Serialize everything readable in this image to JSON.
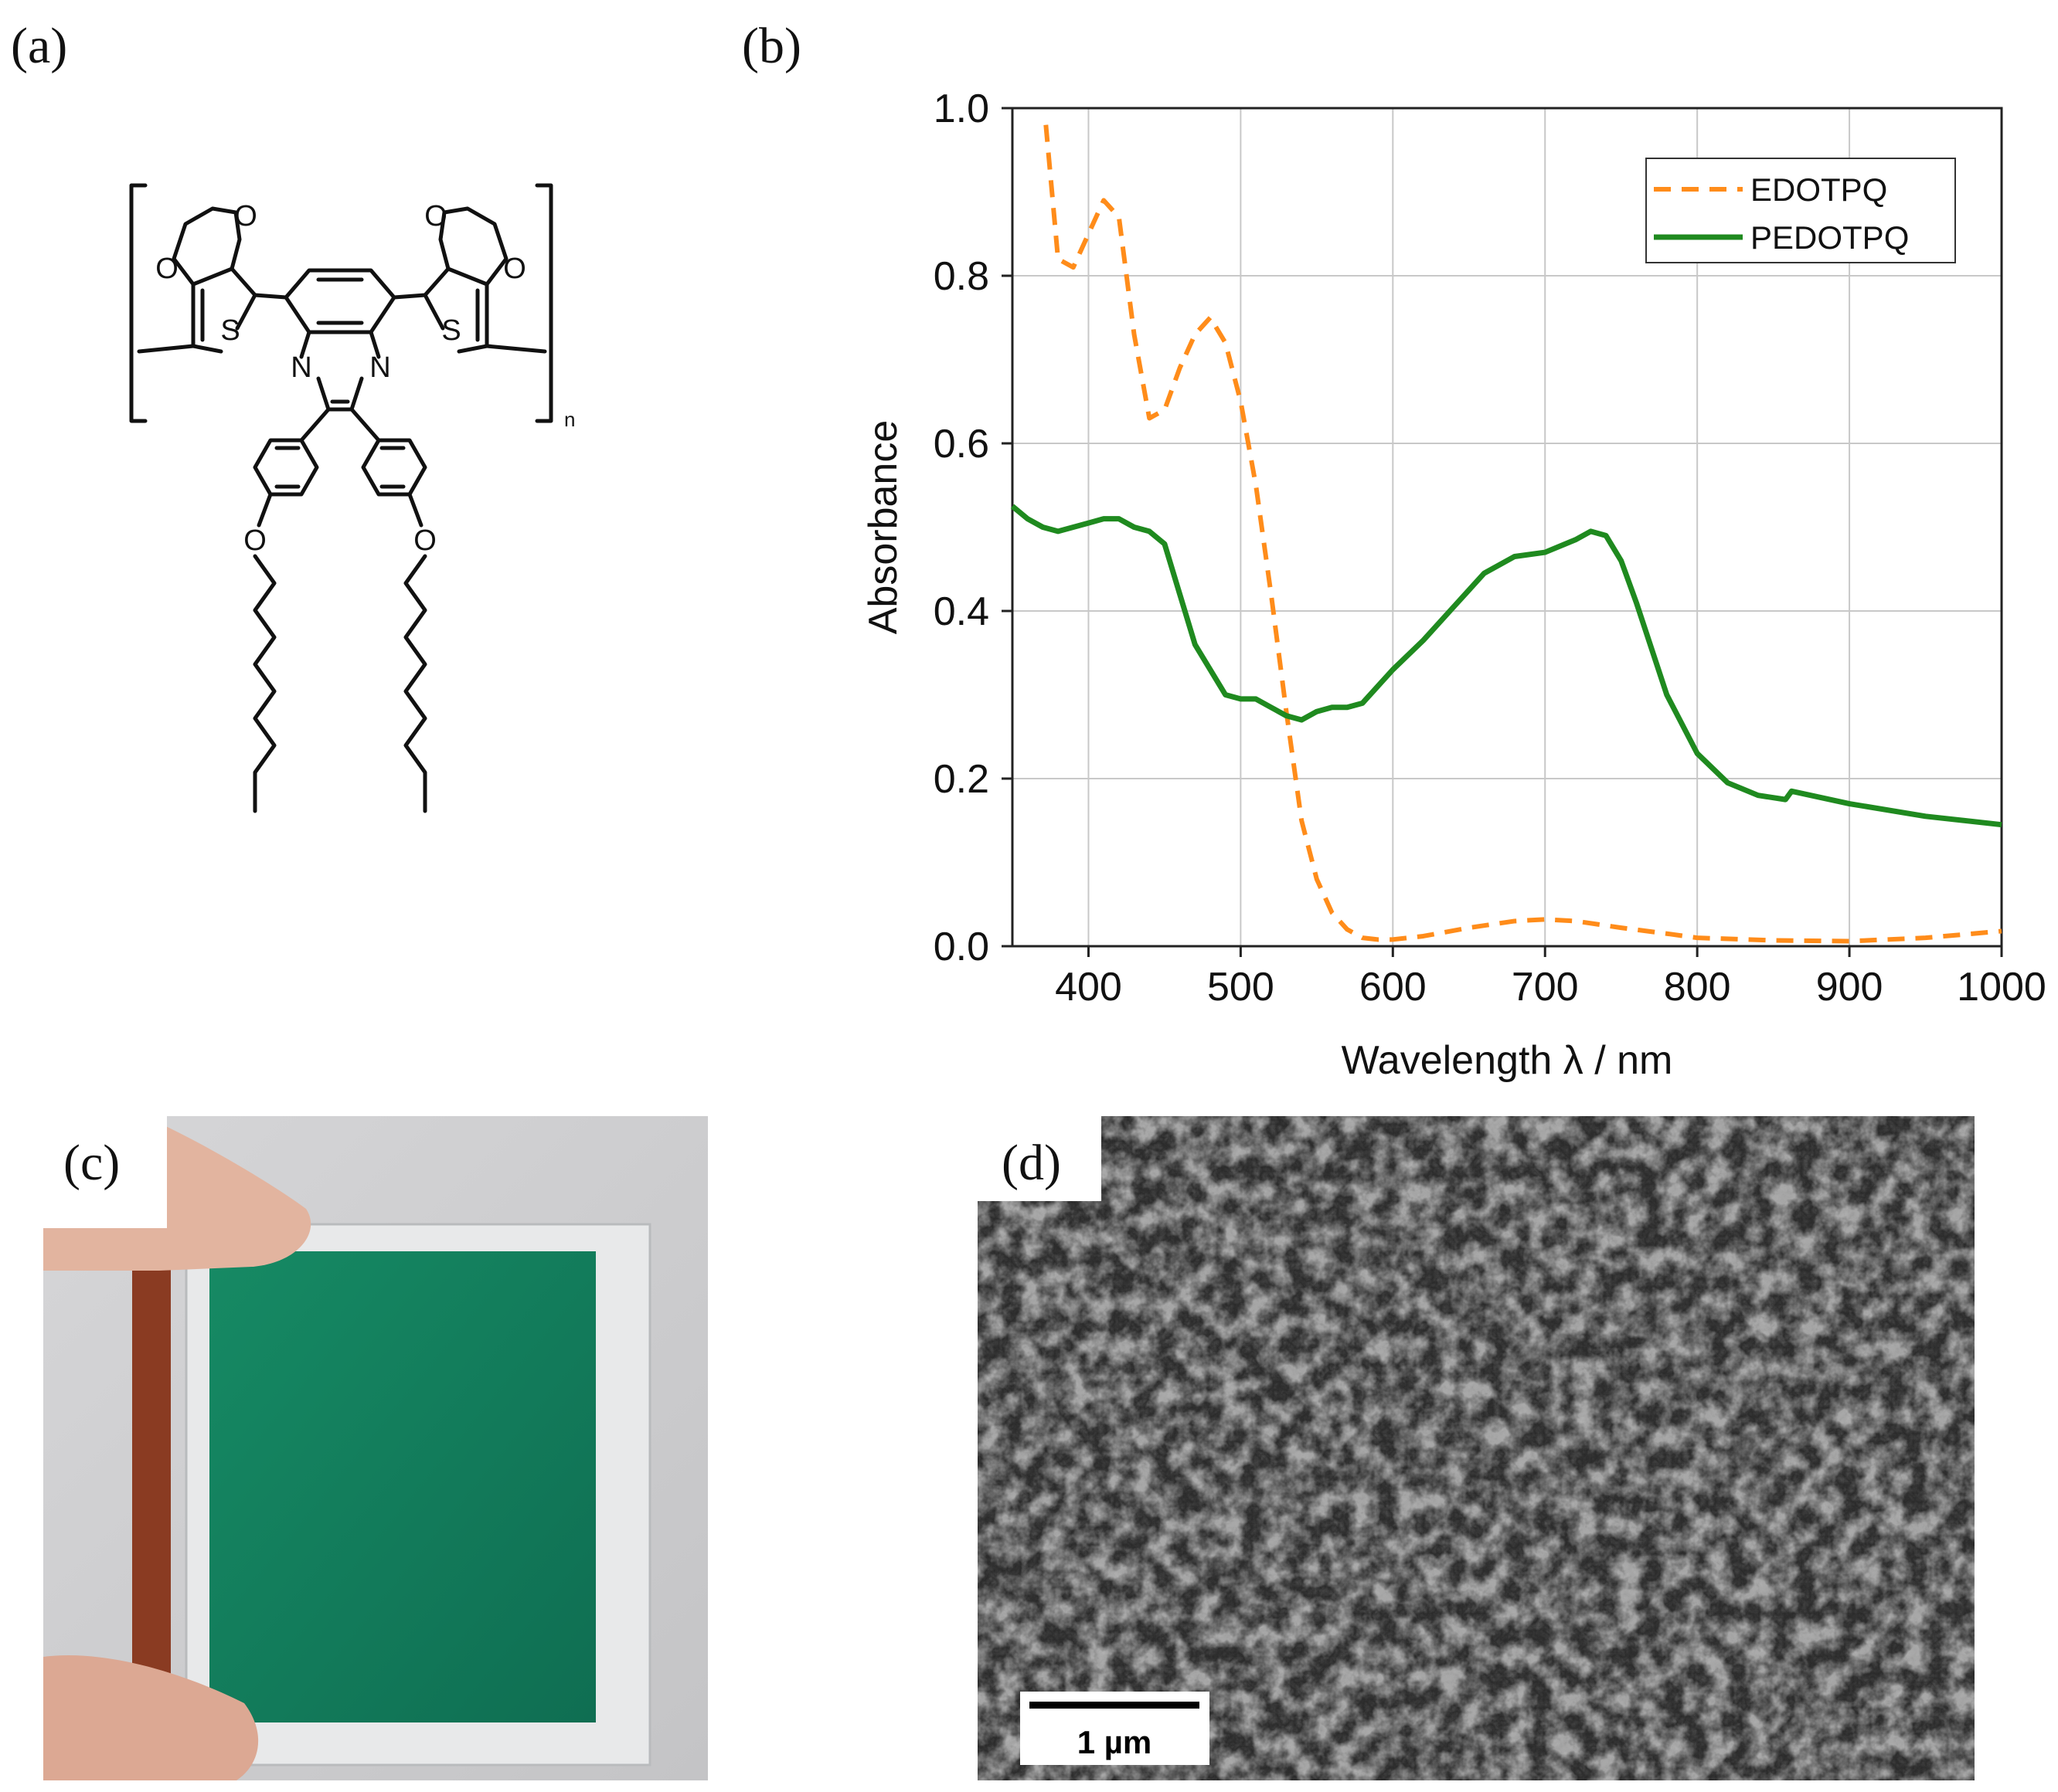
{
  "panels": {
    "a": "(a)",
    "b": "(b)",
    "c": "(c)",
    "d": "(d)"
  },
  "structure": {
    "atom_O": "O",
    "atom_S": "S",
    "atom_N": "N",
    "repeat_subscript": "n"
  },
  "chart_data": {
    "type": "line",
    "xlabel": "Wavelength λ / nm",
    "ylabel": "Absorbance",
    "xlim": [
      350,
      1000
    ],
    "ylim": [
      0,
      1.0
    ],
    "x_ticks": [
      400,
      500,
      600,
      700,
      800,
      900,
      1000
    ],
    "y_ticks": [
      "0.0",
      "0.2",
      "0.4",
      "0.6",
      "0.8",
      "1.0"
    ],
    "grid": true,
    "legend_position": "top-right",
    "series": [
      {
        "name": "EDOTPQ",
        "color": "#ff8c1a",
        "style": "dashed",
        "x": [
          372,
          380,
          390,
          400,
          410,
          420,
          430,
          440,
          450,
          460,
          470,
          480,
          490,
          500,
          510,
          520,
          530,
          540,
          550,
          560,
          570,
          580,
          590,
          600,
          620,
          650,
          680,
          700,
          720,
          750,
          780,
          800,
          850,
          900,
          950,
          1000
        ],
        "y": [
          0.98,
          0.82,
          0.81,
          0.85,
          0.89,
          0.87,
          0.73,
          0.63,
          0.64,
          0.69,
          0.73,
          0.75,
          0.72,
          0.65,
          0.55,
          0.42,
          0.28,
          0.15,
          0.08,
          0.04,
          0.02,
          0.01,
          0.008,
          0.008,
          0.012,
          0.022,
          0.03,
          0.032,
          0.03,
          0.022,
          0.015,
          0.01,
          0.007,
          0.006,
          0.01,
          0.018
        ]
      },
      {
        "name": "PEDOTPQ",
        "color": "#1f8a1f",
        "style": "solid",
        "x": [
          350,
          360,
          370,
          380,
          390,
          400,
          410,
          420,
          430,
          440,
          450,
          460,
          470,
          480,
          490,
          500,
          510,
          520,
          530,
          540,
          550,
          560,
          570,
          580,
          600,
          620,
          640,
          660,
          680,
          700,
          720,
          730,
          740,
          750,
          760,
          780,
          800,
          820,
          840,
          858,
          862,
          900,
          950,
          1000
        ],
        "y": [
          0.525,
          0.51,
          0.5,
          0.495,
          0.5,
          0.505,
          0.51,
          0.51,
          0.5,
          0.495,
          0.48,
          0.42,
          0.36,
          0.33,
          0.3,
          0.295,
          0.295,
          0.285,
          0.275,
          0.27,
          0.28,
          0.285,
          0.285,
          0.29,
          0.33,
          0.365,
          0.405,
          0.445,
          0.465,
          0.47,
          0.485,
          0.495,
          0.49,
          0.46,
          0.41,
          0.3,
          0.23,
          0.195,
          0.18,
          0.175,
          0.185,
          0.17,
          0.155,
          0.145
        ]
      }
    ]
  },
  "photo": {
    "film_color": "#127a5a",
    "contact_strip_color": "#8a3b22"
  },
  "sem": {
    "scale_bar_label": "1 µm"
  }
}
